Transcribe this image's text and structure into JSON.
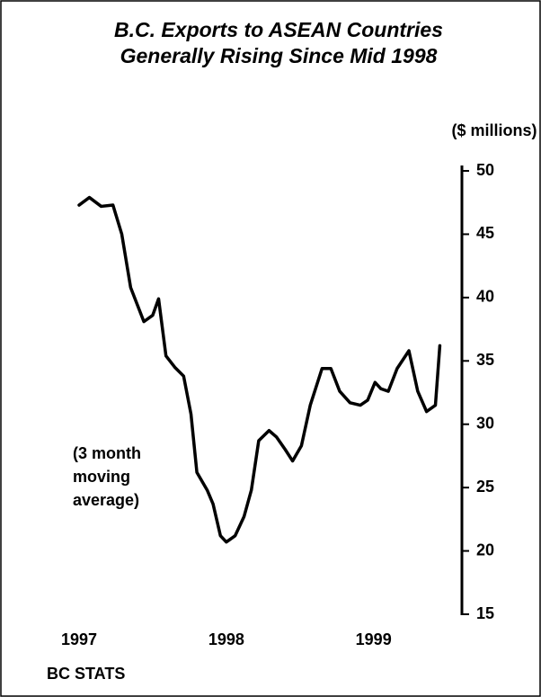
{
  "chart_data": {
    "type": "line",
    "title": [
      "B.C. Exports to ASEAN Countries",
      "Generally Rising Since Mid 1998"
    ],
    "y_label": "($ millions)",
    "annotation": [
      "(3 month",
      "moving",
      "average)"
    ],
    "source": "BC STATS",
    "xlim": [
      1997,
      1999.6
    ],
    "xticks": [
      1997,
      1998,
      1999
    ],
    "ylim": [
      15,
      50
    ],
    "yticks": [
      15,
      20,
      25,
      30,
      35,
      40,
      45,
      50
    ],
    "grid": false,
    "series": [
      {
        "color": "#000000",
        "x": [
          1997.0,
          1997.07,
          1997.15,
          1997.23,
          1997.29,
          1997.35,
          1997.44,
          1997.5,
          1997.54,
          1997.59,
          1997.65,
          1997.71,
          1997.76,
          1997.8,
          1997.87,
          1997.91,
          1997.96,
          1998.0,
          1998.06,
          1998.12,
          1998.17,
          1998.22,
          1998.29,
          1998.34,
          1998.4,
          1998.45,
          1998.51,
          1998.57,
          1998.65,
          1998.71,
          1998.77,
          1998.84,
          1998.91,
          1998.96,
          1999.01,
          1999.05,
          1999.1,
          1999.16,
          1999.24,
          1999.3,
          1999.36,
          1999.42,
          1999.45
        ],
        "values": [
          47.3,
          47.9,
          47.2,
          47.3,
          45.0,
          40.8,
          38.1,
          38.6,
          39.9,
          35.4,
          34.5,
          33.8,
          30.8,
          26.2,
          24.8,
          23.7,
          21.2,
          20.7,
          21.2,
          22.7,
          24.8,
          28.7,
          29.5,
          29.0,
          28.0,
          27.1,
          28.3,
          31.5,
          34.4,
          34.4,
          32.6,
          31.7,
          31.5,
          31.9,
          33.3,
          32.8,
          32.6,
          34.4,
          35.8,
          32.6,
          31.0,
          31.5,
          36.2
        ]
      }
    ]
  }
}
